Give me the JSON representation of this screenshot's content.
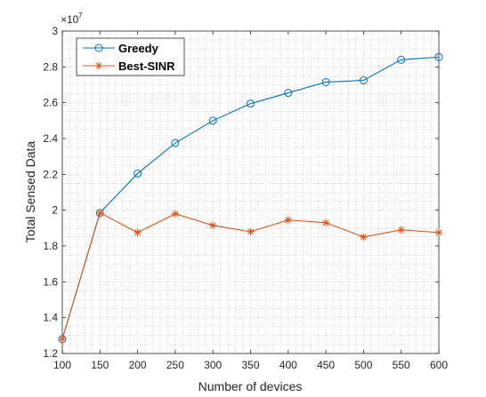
{
  "chart_data": {
    "type": "line",
    "title": "",
    "xlabel": "Number of devices",
    "ylabel": "Total Sensed Data",
    "xlim": [
      100,
      600
    ],
    "ylim": [
      1.2,
      3.0
    ],
    "y_multiplier": {
      "base": "×10",
      "exponent": "7"
    },
    "x_ticks": [
      100,
      150,
      200,
      250,
      300,
      350,
      400,
      450,
      500,
      550,
      600
    ],
    "y_ticks": [
      1.2,
      1.4,
      1.6,
      1.8,
      2.0,
      2.2,
      2.4,
      2.6,
      2.8,
      3.0
    ],
    "y_tick_labels": [
      "1.2",
      "1.4",
      "1.6",
      "1.8",
      "2",
      "2.2",
      "2.4",
      "2.6",
      "2.8",
      "3"
    ],
    "grid": "minor dotted",
    "legend_position": "top-left",
    "x": [
      100,
      150,
      200,
      250,
      300,
      350,
      400,
      450,
      500,
      550,
      600
    ],
    "series": [
      {
        "name": "Greedy",
        "color": "#0072BD",
        "marker": "circle",
        "values": [
          1.28,
          1.985,
          2.205,
          2.375,
          2.5,
          2.595,
          2.655,
          2.715,
          2.725,
          2.84,
          2.855
        ]
      },
      {
        "name": "Best-SINR",
        "color": "#D95319",
        "marker": "asterisk",
        "values": [
          1.28,
          1.985,
          1.875,
          1.98,
          1.915,
          1.88,
          1.945,
          1.93,
          1.85,
          1.89,
          1.875
        ]
      }
    ]
  }
}
